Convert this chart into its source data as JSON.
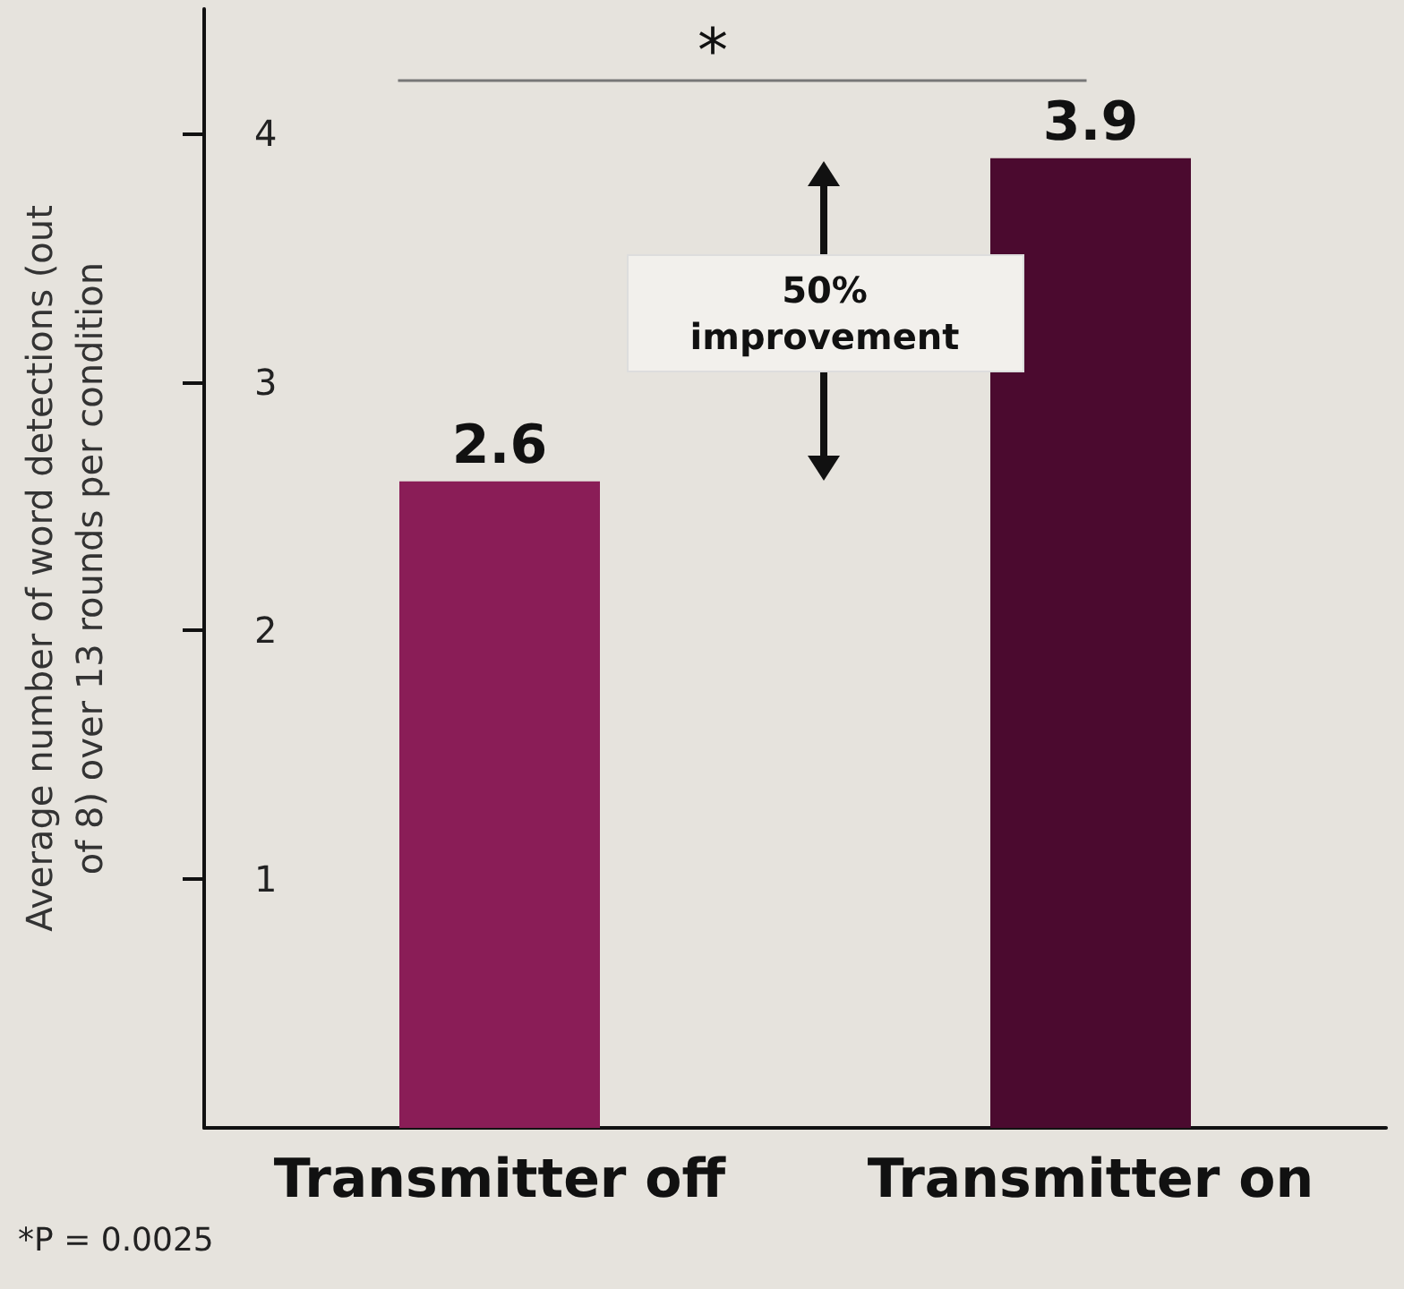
{
  "chart_data": {
    "type": "bar",
    "ylabel": "Average number of word detections (out of 8) over 13 rounds per condition",
    "categories": [
      "Transmitter off",
      "Transmitter on"
    ],
    "values": [
      2.6,
      3.9
    ],
    "colors": [
      "#8a1d57",
      "#4b0a2f"
    ],
    "ylim": [
      0,
      4.5
    ],
    "yticks": [
      1,
      2,
      3,
      4
    ],
    "grid": false,
    "data_labels": true,
    "annotations": [
      "*",
      "50% improvement",
      "*P = 0.0025"
    ]
  }
}
